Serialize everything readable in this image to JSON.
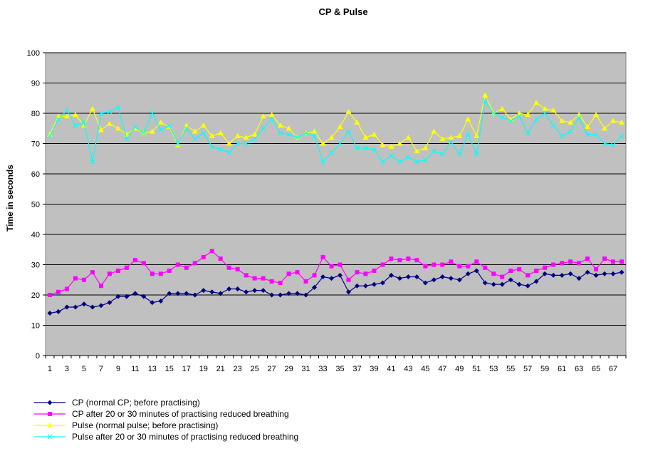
{
  "chart_data": {
    "type": "line",
    "title": "CP & Pulse",
    "xlabel": "",
    "ylabel": "Time in seconds",
    "ylim": [
      0,
      100
    ],
    "yticks": [
      0,
      10,
      20,
      30,
      40,
      50,
      60,
      70,
      80,
      90,
      100
    ],
    "x": [
      1,
      2,
      3,
      4,
      5,
      6,
      7,
      8,
      9,
      10,
      11,
      12,
      13,
      14,
      15,
      16,
      17,
      18,
      19,
      20,
      21,
      22,
      23,
      24,
      25,
      26,
      27,
      28,
      29,
      30,
      31,
      32,
      33,
      34,
      35,
      36,
      37,
      38,
      39,
      40,
      41,
      42,
      43,
      44,
      45,
      46,
      47,
      48,
      49,
      50,
      51,
      52,
      53,
      54,
      55,
      56,
      57,
      58,
      59,
      60,
      61,
      62,
      63,
      64,
      65,
      66,
      67,
      68
    ],
    "xtick_labels": [
      "1",
      "3",
      "5",
      "7",
      "9",
      "11",
      "13",
      "15",
      "17",
      "19",
      "21",
      "23",
      "25",
      "27",
      "29",
      "31",
      "33",
      "35",
      "37",
      "39",
      "41",
      "43",
      "45",
      "47",
      "49",
      "51",
      "53",
      "55",
      "57",
      "59",
      "61",
      "63",
      "65",
      "67"
    ],
    "grid": "horizontal",
    "plot_background": "#c0c0c0",
    "legend_position": "bottom-left",
    "series": [
      {
        "name": "CP (normal CP; before practising)",
        "color": "#000080",
        "marker": "diamond",
        "values": [
          14,
          14.5,
          16,
          16,
          17,
          16,
          16.5,
          17.5,
          19.5,
          19.5,
          20.5,
          19.5,
          17.5,
          18,
          20.5,
          20.5,
          20.5,
          20,
          21.5,
          21,
          20.5,
          22,
          22,
          21,
          21.5,
          21.5,
          20,
          20,
          20.5,
          20.5,
          20,
          22.5,
          26,
          25.5,
          26.5,
          21,
          23,
          23,
          23.5,
          24,
          26.5,
          25.5,
          26,
          26,
          24,
          25,
          26,
          25.5,
          25,
          27,
          28,
          24,
          23.5,
          23.5,
          25,
          23.5,
          23,
          24.5,
          27,
          26.5,
          26.5,
          27,
          25.5,
          27.5,
          26.5,
          27,
          27,
          27.5
        ]
      },
      {
        "name": "CP after 20 or 30 minutes of practising reduced breathing",
        "color": "#ff00ff",
        "marker": "square",
        "values": [
          20,
          21,
          22,
          25.5,
          25,
          27.5,
          23,
          27,
          28,
          29,
          31.5,
          30.5,
          27,
          27,
          28,
          30,
          29,
          30.5,
          32.5,
          34.5,
          32,
          29,
          28.5,
          26.5,
          25.5,
          25.5,
          24.5,
          24,
          27,
          27.5,
          24.5,
          26.5,
          32.5,
          29.5,
          30,
          25,
          27.5,
          27,
          28,
          30,
          32,
          31.5,
          32,
          31.5,
          29.5,
          30,
          30,
          31,
          29.5,
          29.5,
          31,
          29,
          27,
          26,
          28,
          28.5,
          26.5,
          28,
          29,
          30,
          30.5,
          31,
          30.5,
          32,
          28.5,
          32,
          31,
          31
        ]
      },
      {
        "name": "Pulse (normal pulse; before practising)",
        "color": "#ffff00",
        "marker": "triangle",
        "values": [
          73,
          79,
          79,
          79.5,
          76,
          81.5,
          74.5,
          76.5,
          75,
          73,
          75,
          73.5,
          74,
          77,
          75.5,
          69.5,
          76,
          74,
          76,
          72.5,
          73.5,
          70,
          72.5,
          72,
          73,
          79,
          79.5,
          76,
          75,
          72,
          73.5,
          74,
          70,
          72,
          75.5,
          80.5,
          77,
          72,
          73,
          69.5,
          69,
          70,
          72,
          67.5,
          68.5,
          74,
          71.5,
          72,
          72.5,
          78,
          72.5,
          86,
          80,
          81.5,
          78,
          80,
          79.5,
          83.5,
          81.5,
          81,
          77.5,
          77,
          79.5,
          75.5,
          79.5,
          75,
          77.5,
          77
        ]
      },
      {
        "name": "Pulse after 20 or 30 minutes of practising reduced breathing",
        "color": "#00ffff",
        "marker": "x",
        "values": [
          72.5,
          78,
          81,
          76,
          77,
          64,
          80,
          80.5,
          82,
          71.5,
          75.5,
          73.5,
          80,
          74.5,
          76,
          70,
          75,
          71.5,
          73.5,
          69,
          68,
          67,
          70,
          70,
          71.5,
          75,
          78,
          73.5,
          73,
          72,
          73.5,
          72.5,
          64,
          67,
          70,
          74,
          68.5,
          68.5,
          68,
          64,
          66,
          64,
          65.5,
          64,
          64.5,
          67.5,
          66.5,
          70.5,
          66.5,
          73,
          66.5,
          84,
          80,
          78.5,
          77.5,
          79,
          73.5,
          78,
          80,
          76,
          72.5,
          74,
          78.5,
          73,
          73,
          70,
          69.5,
          72.5
        ]
      }
    ]
  }
}
